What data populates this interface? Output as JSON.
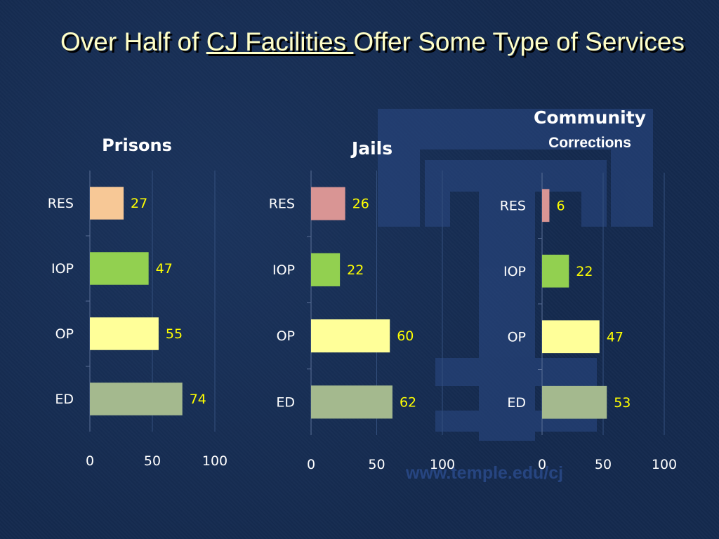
{
  "slide": {
    "title_part1": "Over Half of ",
    "title_underlined": "CJ Facilities ",
    "title_part2": "Offer Some Type of Services",
    "watermark": "www.temple.edu/cj"
  },
  "colors": {
    "background": "#142a4e",
    "title_text": "#ffffc8",
    "data_label": "#ffff00",
    "res_prisons": "#f7c896",
    "res_other": "#d99594",
    "iop": "#92d050",
    "op": "#ffff99",
    "ed": "#a4b98e"
  },
  "chart_data": [
    {
      "type": "bar",
      "orientation": "horizontal",
      "title": "Prisons",
      "categories": [
        "RES",
        "IOP",
        "OP",
        "ED"
      ],
      "values": [
        27,
        47,
        55,
        74
      ],
      "xlim": [
        0,
        100
      ],
      "xticks": [
        "0",
        "50",
        "100"
      ],
      "grid": true
    },
    {
      "type": "bar",
      "orientation": "horizontal",
      "title": "Jails",
      "categories": [
        "RES",
        "IOP",
        "OP",
        "ED"
      ],
      "values": [
        26,
        22,
        60,
        62
      ],
      "xlim": [
        0,
        100
      ],
      "xticks": [
        "0",
        "50",
        "100"
      ],
      "grid": true
    },
    {
      "type": "bar",
      "orientation": "horizontal",
      "title_line1": "Community",
      "title_line2": "Corrections",
      "categories": [
        "RES",
        "IOP",
        "OP",
        "ED"
      ],
      "values": [
        6,
        22,
        47,
        53
      ],
      "xlim": [
        0,
        100
      ],
      "xticks": [
        "0",
        "50",
        "100"
      ],
      "grid": true
    }
  ]
}
